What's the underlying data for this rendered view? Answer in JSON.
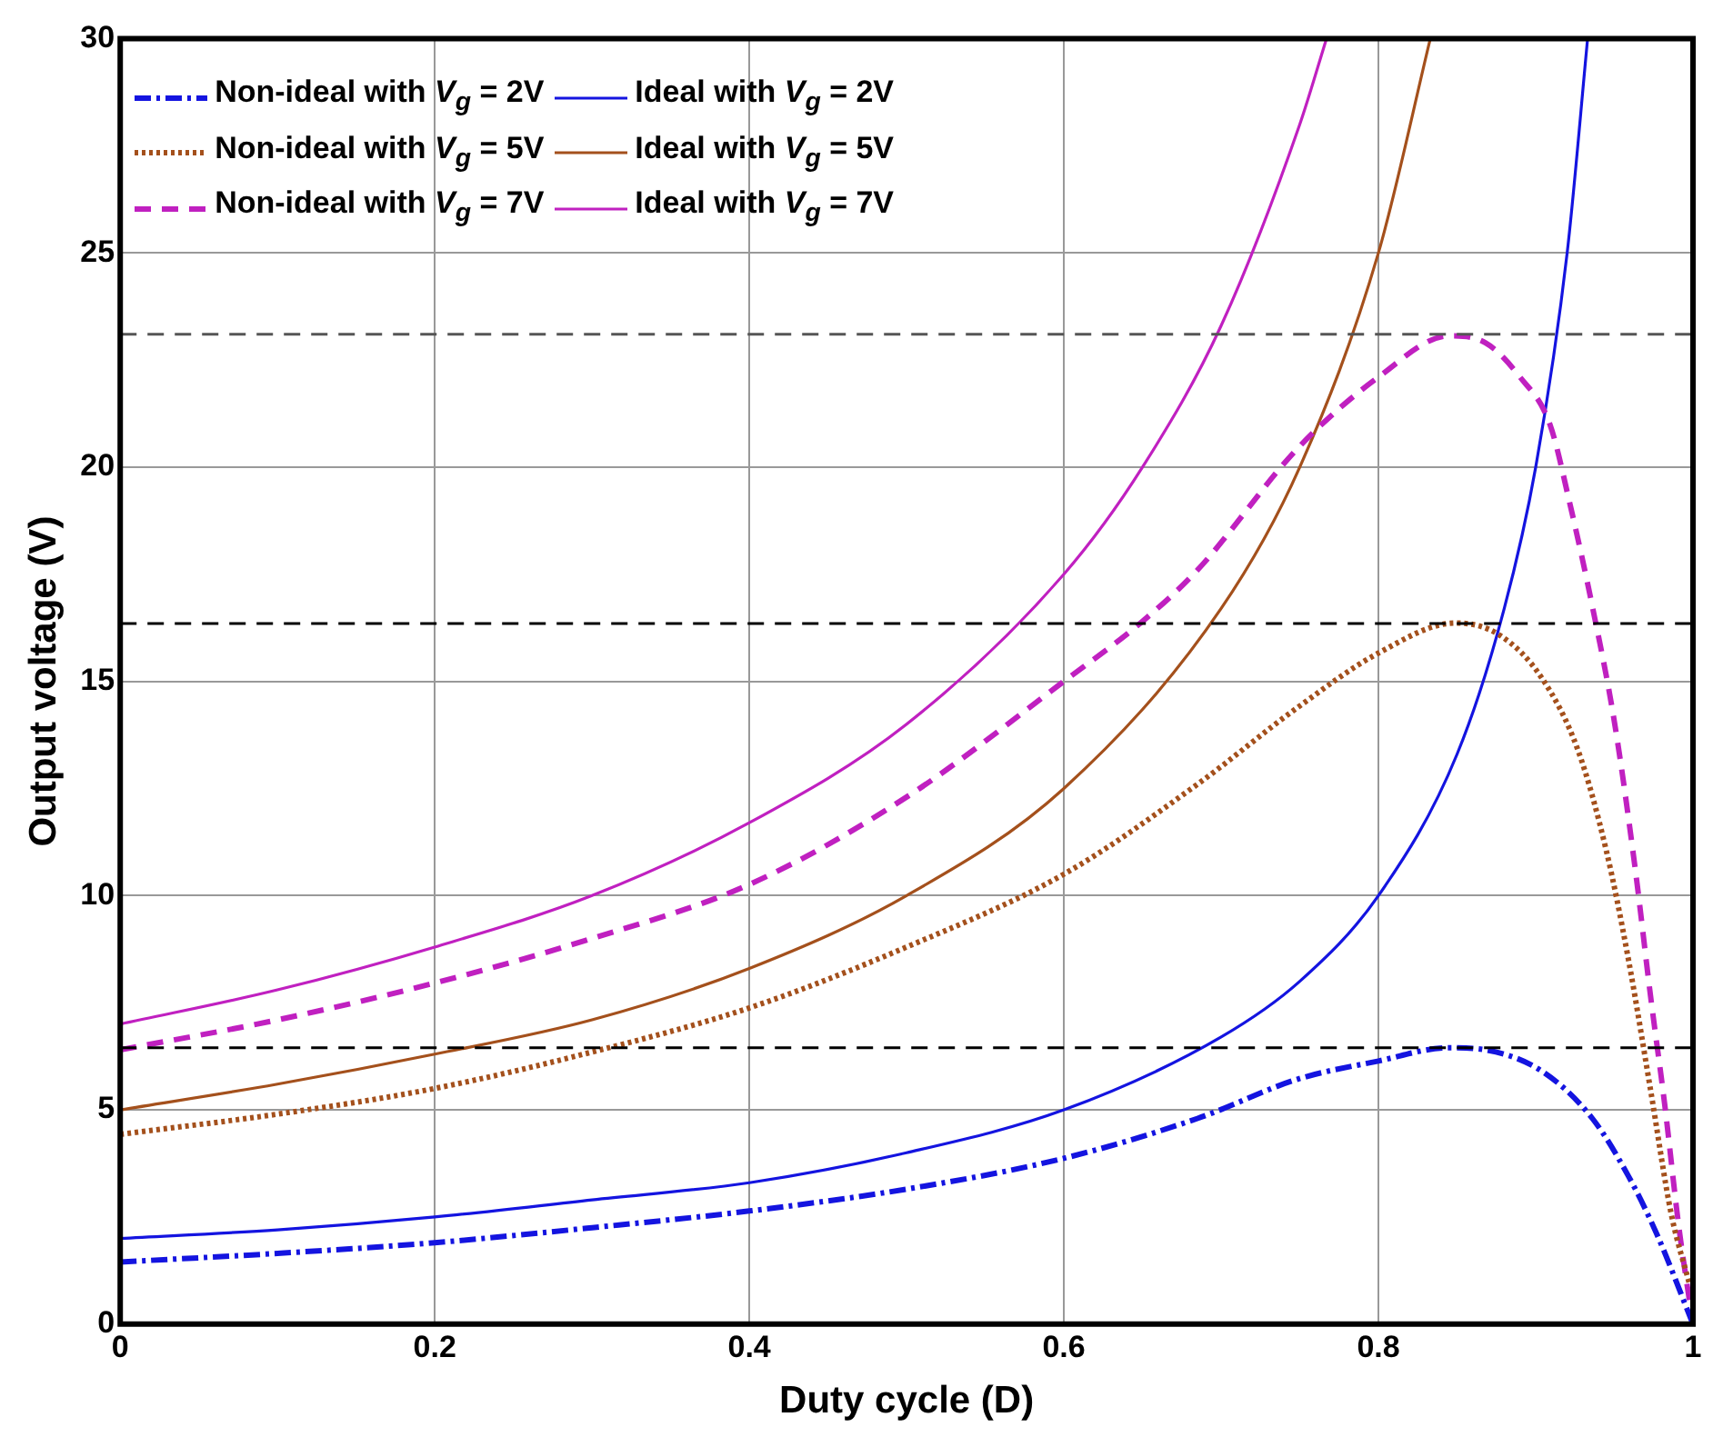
{
  "chart_data": {
    "type": "line",
    "xlabel": "Duty cycle (D)",
    "ylabel": "Output voltage (V)",
    "xlim": [
      0,
      1
    ],
    "xticks": [
      0,
      0.2,
      0.4,
      0.6,
      0.8,
      1
    ],
    "ylim": [
      0,
      30
    ],
    "yticks": [
      0,
      5,
      10,
      15,
      20,
      25,
      30
    ],
    "grid": true,
    "legend": "top left",
    "marker": "none",
    "series": [
      {
        "name": "Non-ideal with V$_{g}$ = 2V",
        "color": "#1414e0",
        "line_style": "dashdot",
        "x": [
          0,
          0.1,
          0.2,
          0.3,
          0.4,
          0.5,
          0.6,
          0.685,
          0.749,
          0.8,
          0.845,
          0.868,
          0.904,
          0.936,
          0.959,
          0.977,
          1
        ],
        "values": [
          1.45,
          1.65,
          1.9,
          2.25,
          2.64,
          3.15,
          3.87,
          4.8,
          5.72,
          6.14,
          6.45,
          6.4,
          5.9,
          4.8,
          3.45,
          2.1,
          0
        ]
      },
      {
        "name": "Non-ideal with V$_{g}$ = 5V",
        "color": "#a4501c",
        "line_style": "dotted",
        "x": [
          0,
          0.1,
          0.2,
          0.3,
          0.4,
          0.5,
          0.6,
          0.685,
          0.749,
          0.8,
          0.849,
          0.877,
          0.904,
          0.927,
          0.945,
          0.959,
          0.973,
          0.986,
          0.998
        ],
        "values": [
          4.43,
          4.9,
          5.5,
          6.35,
          7.38,
          8.8,
          10.5,
          12.6,
          14.4,
          15.66,
          16.36,
          16.08,
          15.07,
          13.38,
          11.03,
          8.5,
          5.47,
          2.6,
          0.9
        ]
      },
      {
        "name": "Non-ideal with V$_{g}$ = 7V",
        "color": "#c020c0",
        "line_style": "dashed",
        "x": [
          0,
          0.1,
          0.2,
          0.3,
          0.4,
          0.5,
          0.6,
          0.65,
          0.685,
          0.749,
          0.8,
          0.845,
          0.868,
          0.89,
          0.909,
          0.922,
          0.936,
          0.95,
          0.963,
          0.973,
          0.982,
          0.991,
          1
        ],
        "values": [
          6.4,
          7.1,
          7.96,
          9.0,
          10.26,
          12.3,
          15.0,
          16.4,
          17.6,
          20.45,
          22.1,
          23.06,
          22.9,
          22.1,
          21.0,
          19.1,
          16.75,
          14.06,
          10.7,
          7.66,
          5.13,
          2.27,
          0
        ]
      },
      {
        "name": "Ideal with V$_{g}$ = 2V",
        "color": "#1414e0",
        "line_style": "solid",
        "x": [
          0,
          0.1,
          0.2,
          0.3,
          0.4,
          0.5,
          0.6,
          0.7,
          0.75,
          0.8,
          0.85,
          0.88,
          0.9,
          0.92,
          0.933
        ],
        "values": [
          2,
          2.2,
          2.5,
          2.9,
          3.3,
          4,
          5,
          6.7,
          8,
          10,
          13.3,
          16.7,
          20,
          25,
          30
        ]
      },
      {
        "name": "Ideal with V$_{g}$ = 5V",
        "color": "#a4501c",
        "line_style": "solid",
        "x": [
          0,
          0.1,
          0.2,
          0.3,
          0.4,
          0.5,
          0.6,
          0.7,
          0.75,
          0.8,
          0.833
        ],
        "values": [
          5,
          5.6,
          6.3,
          7.1,
          8.3,
          10,
          12.5,
          16.7,
          20,
          25,
          30
        ]
      },
      {
        "name": "Ideal with V$_{g}$ = 7V",
        "color": "#c020c0",
        "line_style": "solid",
        "x": [
          0,
          0.1,
          0.2,
          0.3,
          0.4,
          0.5,
          0.6,
          0.65,
          0.7,
          0.75,
          0.767
        ],
        "values": [
          7,
          7.8,
          8.8,
          10,
          11.7,
          14,
          17.5,
          20,
          23.3,
          28,
          30
        ]
      }
    ],
    "ref_lines": [
      {
        "axis": "y",
        "value": 6.45,
        "color": "#000000",
        "line_style": "dashed"
      },
      {
        "axis": "y",
        "value": 16.35,
        "color": "#000000",
        "line_style": "dashed"
      },
      {
        "axis": "y",
        "value": 23.1,
        "color": "#555555",
        "line_style": "dashed"
      }
    ]
  }
}
